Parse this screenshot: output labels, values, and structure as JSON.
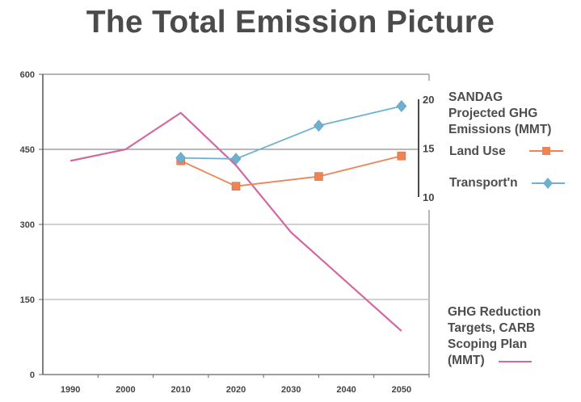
{
  "chart_data": {
    "type": "line",
    "title": "The Total Emission Picture",
    "xlabel": "",
    "ylabel": "",
    "categories": [
      "1990",
      "2000",
      "2010",
      "2020",
      "2030",
      "2040",
      "2050"
    ],
    "primary_axis": {
      "ylim": [
        0,
        600
      ],
      "ticks": [
        "0",
        "150",
        "300",
        "450",
        "600"
      ]
    },
    "secondary_axis": {
      "ylim": [
        10,
        20
      ],
      "ticks": [
        "10",
        "15",
        "20"
      ],
      "label": "SANDAG Projected GHG Emissions (MMT)"
    },
    "grid": true,
    "series": [
      {
        "name": "GHG Reduction Targets, CARB Scoping Plan (MMT)",
        "axis": "primary",
        "color": "#d4679e",
        "marker": "none",
        "x": [
          1990,
          2000,
          2010,
          2020,
          2030,
          2050
        ],
        "values": [
          427,
          450,
          523,
          418,
          284,
          87
        ]
      },
      {
        "name": "Land Use",
        "axis": "secondary",
        "color": "#ee8455",
        "marker": "square",
        "x": [
          2010,
          2020,
          2035,
          2050
        ],
        "values": [
          13.7,
          11.1,
          12.1,
          14.2
        ]
      },
      {
        "name": "Transport'n",
        "axis": "secondary",
        "color": "#6fb0cf",
        "marker": "diamond",
        "x": [
          2010,
          2020,
          2035,
          2050
        ],
        "values": [
          14.0,
          13.9,
          17.3,
          19.3
        ]
      }
    ],
    "legend": {
      "placement": "right",
      "sandag_title": "SANDAG Projected GHG Emissions (MMT)",
      "sandag_title_lines": [
        "SANDAG",
        "Projected GHG",
        "Emissions (MMT)"
      ],
      "land_use_label": "Land Use",
      "transport_label": "Transport'n",
      "carb_lines": [
        "GHG Reduction",
        "Targets, CARB",
        "Scoping Plan",
        "(MMT)"
      ]
    }
  }
}
